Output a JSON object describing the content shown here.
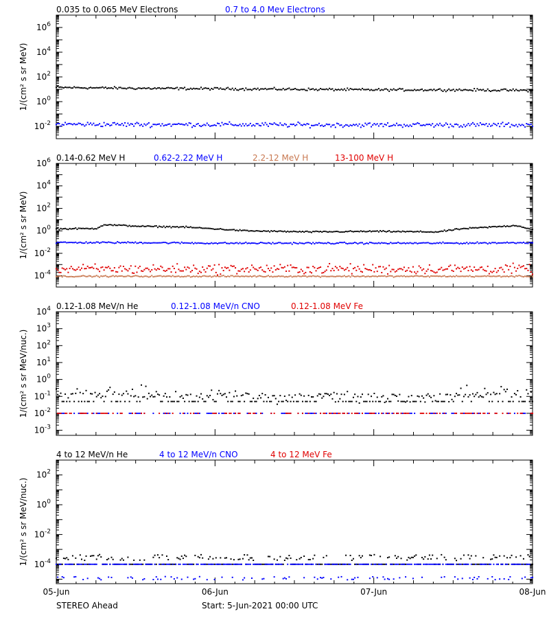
{
  "chart_data": [
    {
      "type": "scatter",
      "panel": "electrons",
      "ylabel": "1/(cm² s sr MeV)",
      "yscale": "log",
      "ylim": [
        0.001,
        10000000
      ],
      "yticks": [
        {
          "value": 0.01,
          "base": "10",
          "exp": "-2"
        },
        {
          "value": 1,
          "base": "10",
          "exp": "0"
        },
        {
          "value": 100,
          "base": "10",
          "exp": "2"
        },
        {
          "value": 10000,
          "base": "10",
          "exp": "4"
        },
        {
          "value": 1000000,
          "base": "10",
          "exp": "6"
        }
      ],
      "legend": [
        {
          "label": "0.035 to 0.065 MeV Electrons",
          "color": "#000000"
        },
        {
          "label": "0.7 to 4.0 Mev Electrons",
          "color": "#0000ff"
        }
      ],
      "series": [
        {
          "color": "#000000",
          "x": [
            0,
            0.5,
            1.0,
            1.5,
            2.0,
            2.5,
            3.0
          ],
          "y": [
            14,
            12,
            11,
            10,
            9,
            9,
            8
          ],
          "scatter": 0.08
        },
        {
          "color": "#0000ff",
          "x": [
            0,
            0.5,
            1.0,
            1.5,
            2.0,
            2.5,
            3.0
          ],
          "y": [
            0.015,
            0.014,
            0.014,
            0.013,
            0.013,
            0.013,
            0.013
          ],
          "scatter": 0.15
        }
      ]
    },
    {
      "type": "scatter",
      "panel": "protons",
      "ylabel": "1/(cm² s sr MeV)",
      "yscale": "log",
      "ylim": [
        1e-05,
        1000000
      ],
      "yticks": [
        {
          "value": 0.0001,
          "base": "10",
          "exp": "-4"
        },
        {
          "value": 0.01,
          "base": "10",
          "exp": "-2"
        },
        {
          "value": 1,
          "base": "10",
          "exp": "0"
        },
        {
          "value": 100,
          "base": "10",
          "exp": "2"
        },
        {
          "value": 10000,
          "base": "10",
          "exp": "4"
        },
        {
          "value": 1000000,
          "base": "10",
          "exp": "6"
        }
      ],
      "legend": [
        {
          "label": "0.14-0.62 MeV H",
          "color": "#000000"
        },
        {
          "label": "0.62-2.22 MeV H",
          "color": "#0000ff"
        },
        {
          "label": "2.2-12 MeV H",
          "color": "#c87850"
        },
        {
          "label": "13-100 MeV H",
          "color": "#e00000"
        }
      ],
      "series": [
        {
          "color": "#000000",
          "x": [
            0,
            0.25,
            0.3,
            0.55,
            0.8,
            1.0,
            1.2,
            1.6,
            2.0,
            2.4,
            2.55,
            2.9,
            3.0
          ],
          "y": [
            1.5,
            1.6,
            3.5,
            2.5,
            2.2,
            1.5,
            1.0,
            0.8,
            0.9,
            0.8,
            1.5,
            3.0,
            1.3
          ],
          "scatter": 0.05
        },
        {
          "color": "#0000ff",
          "x": [
            0,
            0.5,
            1.0,
            1.5,
            2.0,
            2.5,
            3.0
          ],
          "y": [
            0.09,
            0.09,
            0.08,
            0.08,
            0.08,
            0.08,
            0.09
          ],
          "scatter": 0.06
        },
        {
          "color": "#c87850",
          "x": [
            0,
            0.5,
            1.0,
            1.5,
            2.0,
            2.5,
            3.0
          ],
          "y": [
            9e-05,
            9e-05,
            9e-05,
            9e-05,
            9e-05,
            9e-05,
            9e-05
          ],
          "scatter": 0.05
        },
        {
          "color": "#e00000",
          "x": [
            0,
            0.5,
            1.0,
            1.5,
            2.0,
            2.5,
            3.0
          ],
          "y": [
            0.0004,
            0.0004,
            0.0004,
            0.0004,
            0.0004,
            0.0004,
            0.0004
          ],
          "scatter": 0.35
        }
      ]
    },
    {
      "type": "scatter",
      "panel": "heavy-low",
      "ylabel": "1/(cm² s sr MeV/nuc.)",
      "yscale": "log",
      "ylim": [
        0.0005,
        10000
      ],
      "yticks": [
        {
          "value": 0.001,
          "base": "10",
          "exp": "-3"
        },
        {
          "value": 0.01,
          "base": "10",
          "exp": "-2"
        },
        {
          "value": 0.1,
          "base": "10",
          "exp": "-1"
        },
        {
          "value": 1,
          "base": "10",
          "exp": "0"
        },
        {
          "value": 10,
          "base": "10",
          "exp": "1"
        },
        {
          "value": 100,
          "base": "10",
          "exp": "2"
        },
        {
          "value": 1000,
          "base": "10",
          "exp": "3"
        },
        {
          "value": 10000,
          "base": "10",
          "exp": "4"
        }
      ],
      "legend": [
        {
          "label": "0.12-1.08 MeV/n He",
          "color": "#000000"
        },
        {
          "label": "0.12-1.08 MeV/n CNO",
          "color": "#0000ff"
        },
        {
          "label": "0.12-1.08 MeV Fe",
          "color": "#e00000"
        }
      ],
      "series": [
        {
          "color": "#000000",
          "x": [
            0,
            0.3,
            0.45,
            0.7,
            1.0,
            1.5,
            2.0,
            2.4,
            2.6,
            2.85,
            3.0
          ],
          "y": [
            0.1,
            0.15,
            0.3,
            0.12,
            0.1,
            0.08,
            0.08,
            0.1,
            0.15,
            0.3,
            0.1
          ],
          "scatter": 0.3,
          "levels": [
            0.05,
            0.1
          ]
        },
        {
          "color": "#0000ff",
          "x": [
            0,
            1.0,
            2.0,
            3.0
          ],
          "y": [
            0.01,
            0.01,
            0.01,
            0.01
          ],
          "scatter": 0.0
        },
        {
          "color": "#e00000",
          "x": [
            0,
            1.0,
            2.0,
            3.0
          ],
          "y": [
            0.01,
            0.01,
            0.01,
            0.01
          ],
          "scatter": 0.0
        }
      ]
    },
    {
      "type": "scatter",
      "panel": "heavy-high",
      "ylabel": "1/(cm² s sr MeV/nuc.)",
      "yscale": "log",
      "ylim": [
        5e-06,
        1000
      ],
      "yticks": [
        {
          "value": 0.0001,
          "base": "10",
          "exp": "-4"
        },
        {
          "value": 0.01,
          "base": "10",
          "exp": "-2"
        },
        {
          "value": 1,
          "base": "10",
          "exp": "0"
        },
        {
          "value": 100,
          "base": "10",
          "exp": "2"
        }
      ],
      "legend": [
        {
          "label": "4 to 12 MeV/n He",
          "color": "#000000"
        },
        {
          "label": "4 to 12 MeV/n CNO",
          "color": "#0000ff"
        },
        {
          "label": "4 to 12 MeV Fe",
          "color": "#e00000"
        }
      ],
      "series": [
        {
          "color": "#000000",
          "x": [
            0,
            1.0,
            2.0,
            3.0
          ],
          "y": [
            0.0001,
            0.0001,
            0.0001,
            0.0001
          ],
          "scatter": 0.0,
          "levels": [
            0.0001,
            0.0002,
            0.0003
          ]
        },
        {
          "color": "#0000ff",
          "x": [
            0,
            1.0,
            2.0,
            3.0
          ],
          "y": [
            0.0001,
            0.0001,
            0.0001,
            0.0001
          ],
          "scatter": 0.0,
          "levels": [
            0.0001,
            1e-05
          ]
        }
      ]
    }
  ],
  "xaxis": {
    "ticks": [
      {
        "value": 0,
        "label": "05-Jun"
      },
      {
        "value": 1,
        "label": "06-Jun"
      },
      {
        "value": 2,
        "label": "07-Jun"
      },
      {
        "value": 3,
        "label": "08-Jun"
      }
    ],
    "xlim": [
      0,
      3
    ]
  },
  "footer": {
    "spacecraft": "STEREO Ahead",
    "start": "Start:  5-Jun-2021 00:00 UTC"
  }
}
